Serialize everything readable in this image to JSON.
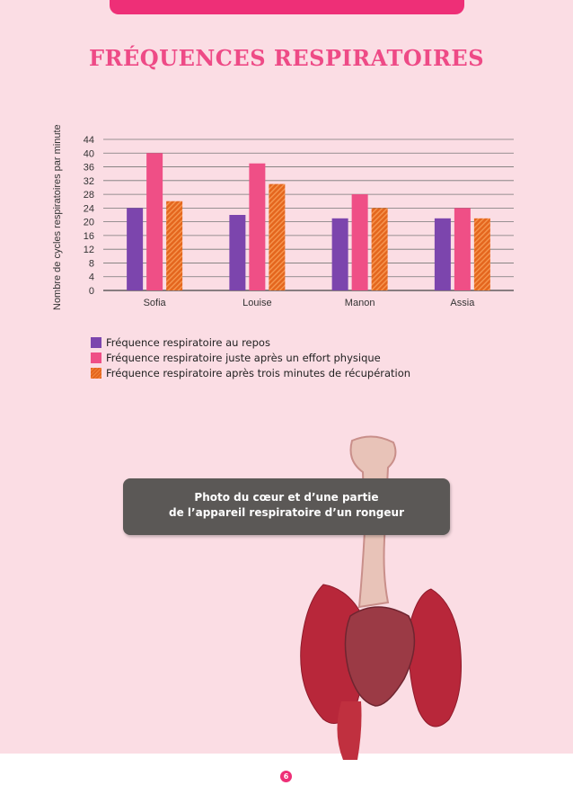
{
  "chart_data": {
    "type": "bar",
    "title": "FRÉQUENCES RESPIRATOIRES",
    "xlabel": "",
    "ylabel": "Nombre de cycles respiratoires par minute",
    "ylim": [
      0,
      44
    ],
    "yticks": [
      0,
      4,
      8,
      12,
      16,
      20,
      24,
      28,
      32,
      36,
      40,
      44
    ],
    "grid": true,
    "categories": [
      "Sofia",
      "Louise",
      "Manon",
      "Assia"
    ],
    "series": [
      {
        "name": "Fréquence respiratoire au repos",
        "values": [
          24,
          22,
          21,
          21
        ],
        "color": "#7c45ad"
      },
      {
        "name": "Fréquence respiratoire juste après un effort physique",
        "values": [
          40,
          37,
          28,
          24
        ],
        "color": "#ef4f86"
      },
      {
        "name": "Fréquence respiratoire après trois minutes de récupération",
        "values": [
          26,
          31,
          24,
          21
        ],
        "color": "#e9702a"
      }
    ],
    "legend": "bottom"
  },
  "photo": {
    "caption_line1": "Photo du cœur et d’une partie",
    "caption_line2": "de l’appareil respiratoire d’un rongeur"
  },
  "page_number": "6"
}
